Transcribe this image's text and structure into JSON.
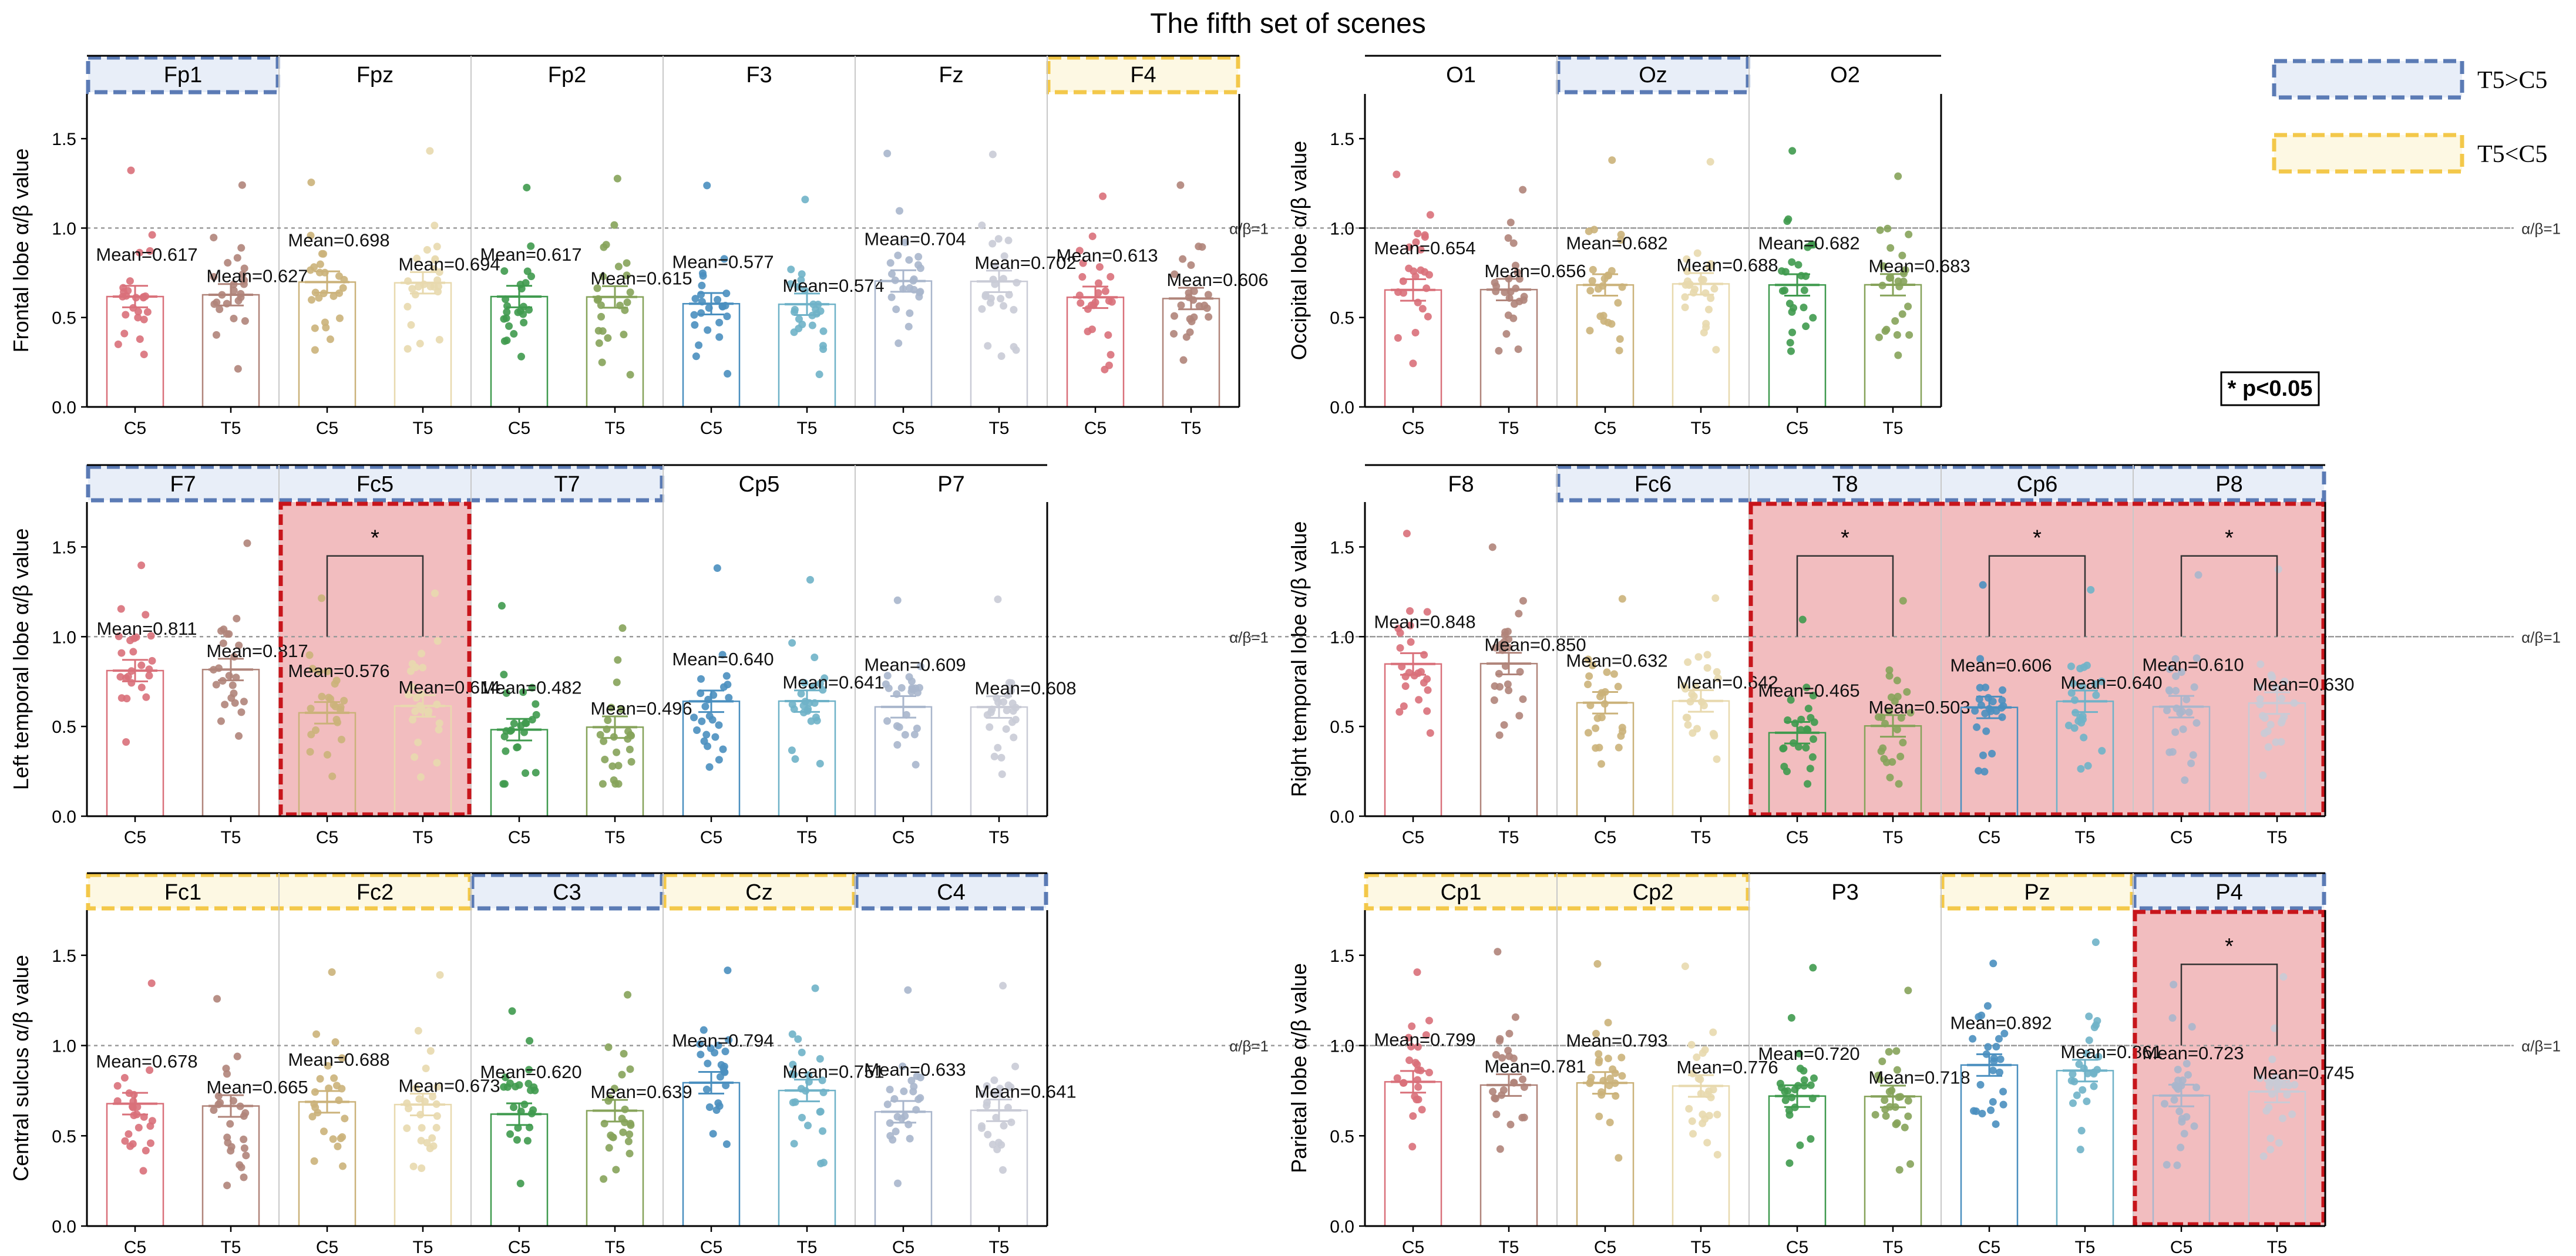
{
  "figure": {
    "title": "The fifth set of scenes",
    "ref_label": "α/β=1",
    "sig_note": "* p<0.05",
    "legend": [
      {
        "label": "T5>C5",
        "fill": "#e8eef8",
        "stroke": "#5b7bb5"
      },
      {
        "label": "T5<C5",
        "fill": "#fdf8e3",
        "stroke": "#f3c84a"
      }
    ],
    "colors": {
      "blue_box_fill": "#e8eef8",
      "blue_box_stroke": "#5b7bb5",
      "yellow_box_fill": "#fdf8e3",
      "yellow_box_stroke": "#f3c84a",
      "sig_fill": "#f2bdbf",
      "sig_stroke": "#c8151b",
      "divider": "#c8c8c8",
      "refline": "#9a9a9a"
    }
  },
  "chart_data": [
    {
      "type": "bar",
      "ylabel": "Frontal lobe α/β value",
      "ylim": [
        0,
        1.75
      ],
      "yticks": [
        0.0,
        0.5,
        1.0,
        1.5
      ],
      "ref_line": 1.0,
      "categories": [
        "C5",
        "T5"
      ],
      "electrodes": [
        {
          "name": "Fp1",
          "box": "blue",
          "sig": false,
          "colors": [
            "#d9707a",
            "#b0847a"
          ],
          "means": [
            0.617,
            0.627
          ],
          "labels": [
            "Mean=0.617",
            "Mean=0.627"
          ]
        },
        {
          "name": "Fpz",
          "box": "none",
          "sig": false,
          "colors": [
            "#cbb27a",
            "#e8d9ae"
          ],
          "means": [
            0.698,
            0.694
          ],
          "labels": [
            "Mean=0.698",
            "Mean=0.694"
          ]
        },
        {
          "name": "Fp2",
          "box": "none",
          "sig": false,
          "colors": [
            "#3f9a4e",
            "#86a35a"
          ],
          "means": [
            0.617,
            0.615
          ],
          "labels": [
            "Mean=0.617",
            "Mean=0.615"
          ]
        },
        {
          "name": "F3",
          "box": "none",
          "sig": false,
          "colors": [
            "#4a8fbf",
            "#6fb2c8"
          ],
          "means": [
            0.577,
            0.574
          ],
          "labels": [
            "Mean=0.577",
            "Mean=0.574"
          ]
        },
        {
          "name": "Fz",
          "box": "none",
          "sig": false,
          "colors": [
            "#a9b6cc",
            "#c9cbd6"
          ],
          "means": [
            0.704,
            0.702
          ],
          "labels": [
            "Mean=0.704",
            "Mean=0.702"
          ]
        },
        {
          "name": "F4",
          "box": "yellow",
          "sig": false,
          "colors": [
            "#d9707a",
            "#b0847a"
          ],
          "means": [
            0.613,
            0.606
          ],
          "labels": [
            "Mean=0.613",
            "Mean=0.606"
          ]
        }
      ]
    },
    {
      "type": "bar",
      "ylabel": "Occipital lobe α/β value",
      "ylim": [
        0,
        1.75
      ],
      "yticks": [
        0.0,
        0.5,
        1.0,
        1.5
      ],
      "ref_line": 1.0,
      "categories": [
        "C5",
        "T5"
      ],
      "electrodes": [
        {
          "name": "O1",
          "box": "none",
          "sig": false,
          "colors": [
            "#d9707a",
            "#b0847a"
          ],
          "means": [
            0.654,
            0.656
          ],
          "labels": [
            "Mean=0.654",
            "Mean=0.656"
          ]
        },
        {
          "name": "Oz",
          "box": "blue",
          "sig": false,
          "colors": [
            "#cbb27a",
            "#e8d9ae"
          ],
          "means": [
            0.682,
            0.688
          ],
          "labels": [
            "Mean=0.682",
            "Mean=0.688"
          ]
        },
        {
          "name": "O2",
          "box": "none",
          "sig": false,
          "colors": [
            "#3f9a4e",
            "#86a35a"
          ],
          "means": [
            0.682,
            0.683
          ],
          "labels": [
            "Mean=0.682",
            "Mean=0.683"
          ]
        }
      ]
    },
    {
      "type": "bar",
      "ylabel": "Left temporal lobe α/β value",
      "ylim": [
        0,
        1.75
      ],
      "yticks": [
        0.0,
        0.5,
        1.0,
        1.5
      ],
      "ref_line": 1.0,
      "categories": [
        "C5",
        "T5"
      ],
      "electrodes": [
        {
          "name": "F7",
          "box": "blue",
          "sig": false,
          "colors": [
            "#d9707a",
            "#b0847a"
          ],
          "means": [
            0.811,
            0.817
          ],
          "labels": [
            "Mean=0.811",
            "Mean=0.817"
          ]
        },
        {
          "name": "Fc5",
          "box": "blue",
          "sig": true,
          "colors": [
            "#cbb27a",
            "#e8d9ae"
          ],
          "means": [
            0.576,
            0.614
          ],
          "labels": [
            "Mean=0.576",
            "Mean=0.614"
          ]
        },
        {
          "name": "T7",
          "box": "blue",
          "sig": false,
          "colors": [
            "#3f9a4e",
            "#86a35a"
          ],
          "means": [
            0.482,
            0.496
          ],
          "labels": [
            "Mean=0.482",
            "Mean=0.496"
          ]
        },
        {
          "name": "Cp5",
          "box": "none",
          "sig": false,
          "colors": [
            "#4a8fbf",
            "#6fb2c8"
          ],
          "means": [
            0.64,
            0.641
          ],
          "labels": [
            "Mean=0.640",
            "Mean=0.641"
          ]
        },
        {
          "name": "P7",
          "box": "none",
          "sig": false,
          "colors": [
            "#a9b6cc",
            "#c9cbd6"
          ],
          "means": [
            0.609,
            0.608
          ],
          "labels": [
            "Mean=0.609",
            "Mean=0.608"
          ]
        }
      ]
    },
    {
      "type": "bar",
      "ylabel": "Right temporal lobe α/β value",
      "ylim": [
        0,
        1.75
      ],
      "yticks": [
        0.0,
        0.5,
        1.0,
        1.5
      ],
      "ref_line": 1.0,
      "categories": [
        "C5",
        "T5"
      ],
      "electrodes": [
        {
          "name": "F8",
          "box": "none",
          "sig": false,
          "colors": [
            "#d9707a",
            "#b0847a"
          ],
          "means": [
            0.848,
            0.85
          ],
          "labels": [
            "Mean=0.848",
            "Mean=0.850"
          ]
        },
        {
          "name": "Fc6",
          "box": "blue",
          "sig": false,
          "colors": [
            "#cbb27a",
            "#e8d9ae"
          ],
          "means": [
            0.632,
            0.642
          ],
          "labels": [
            "Mean=0.632",
            "Mean=0.642"
          ]
        },
        {
          "name": "T8",
          "box": "blue",
          "sig": true,
          "colors": [
            "#3f9a4e",
            "#86a35a"
          ],
          "means": [
            0.465,
            0.503
          ],
          "labels": [
            "Mean=0.465",
            "Mean=0.503"
          ]
        },
        {
          "name": "Cp6",
          "box": "blue",
          "sig": true,
          "colors": [
            "#4a8fbf",
            "#6fb2c8"
          ],
          "means": [
            0.606,
            0.64
          ],
          "labels": [
            "Mean=0.606",
            "Mean=0.640"
          ]
        },
        {
          "name": "P8",
          "box": "blue",
          "sig": true,
          "colors": [
            "#a9b6cc",
            "#c9cbd6"
          ],
          "means": [
            0.61,
            0.63
          ],
          "labels": [
            "Mean=0.610",
            "Mean=0.630"
          ]
        }
      ]
    },
    {
      "type": "bar",
      "ylabel": "Central sulcus α/β value",
      "ylim": [
        0,
        1.75
      ],
      "yticks": [
        0.0,
        0.5,
        1.0,
        1.5
      ],
      "ref_line": 1.0,
      "categories": [
        "C5",
        "T5"
      ],
      "electrodes": [
        {
          "name": "Fc1",
          "box": "yellow",
          "sig": false,
          "colors": [
            "#d9707a",
            "#b0847a"
          ],
          "means": [
            0.678,
            0.665
          ],
          "labels": [
            "Mean=0.678",
            "Mean=0.665"
          ]
        },
        {
          "name": "Fc2",
          "box": "yellow",
          "sig": false,
          "colors": [
            "#cbb27a",
            "#e8d9ae"
          ],
          "means": [
            0.688,
            0.673
          ],
          "labels": [
            "Mean=0.688",
            "Mean=0.673"
          ]
        },
        {
          "name": "C3",
          "box": "blue",
          "sig": false,
          "colors": [
            "#3f9a4e",
            "#86a35a"
          ],
          "means": [
            0.62,
            0.639
          ],
          "labels": [
            "Mean=0.620",
            "Mean=0.639"
          ]
        },
        {
          "name": "Cz",
          "box": "yellow",
          "sig": false,
          "colors": [
            "#4a8fbf",
            "#6fb2c8"
          ],
          "means": [
            0.794,
            0.751
          ],
          "labels": [
            "Mean=0.794",
            "Mean=0.751"
          ]
        },
        {
          "name": "C4",
          "box": "blue",
          "sig": false,
          "colors": [
            "#a9b6cc",
            "#c9cbd6"
          ],
          "means": [
            0.633,
            0.641
          ],
          "labels": [
            "Mean=0.633",
            "Mean=0.641"
          ]
        }
      ]
    },
    {
      "type": "bar",
      "ylabel": "Parietal lobe α/β value",
      "ylim": [
        0,
        1.75
      ],
      "yticks": [
        0.0,
        0.5,
        1.0,
        1.5
      ],
      "ref_line": 1.0,
      "categories": [
        "C5",
        "T5"
      ],
      "electrodes": [
        {
          "name": "Cp1",
          "box": "yellow",
          "sig": false,
          "colors": [
            "#d9707a",
            "#b0847a"
          ],
          "means": [
            0.799,
            0.781
          ],
          "labels": [
            "Mean=0.799",
            "Mean=0.781"
          ]
        },
        {
          "name": "Cp2",
          "box": "yellow",
          "sig": false,
          "colors": [
            "#cbb27a",
            "#e8d9ae"
          ],
          "means": [
            0.793,
            0.776
          ],
          "labels": [
            "Mean=0.793",
            "Mean=0.776"
          ]
        },
        {
          "name": "P3",
          "box": "none",
          "sig": false,
          "colors": [
            "#3f9a4e",
            "#86a35a"
          ],
          "means": [
            0.72,
            0.718
          ],
          "labels": [
            "Mean=0.720",
            "Mean=0.718"
          ]
        },
        {
          "name": "Pz",
          "box": "yellow",
          "sig": false,
          "colors": [
            "#4a8fbf",
            "#6fb2c8"
          ],
          "means": [
            0.892,
            0.861
          ],
          "labels": [
            "Mean=0.892",
            "Mean=0.861"
          ]
        },
        {
          "name": "P4",
          "box": "blue",
          "sig": true,
          "colors": [
            "#a9b6cc",
            "#c9cbd6"
          ],
          "means": [
            0.723,
            0.745
          ],
          "labels": [
            "Mean=0.723",
            "Mean=0.745"
          ]
        }
      ]
    }
  ]
}
